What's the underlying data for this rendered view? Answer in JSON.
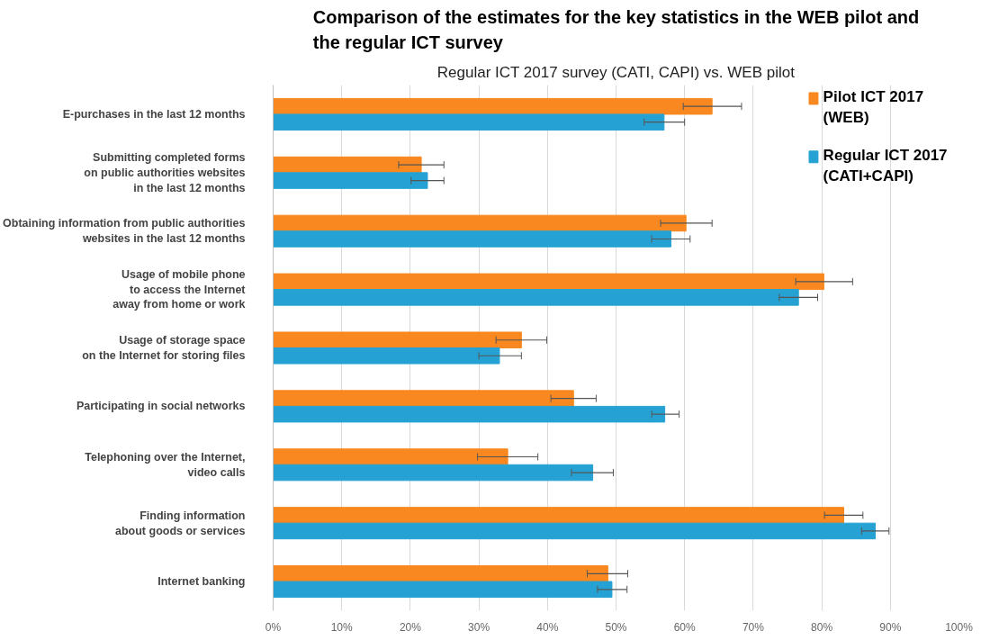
{
  "chart_data": {
    "type": "bar",
    "orientation": "horizontal",
    "title": "Comparison of the estimates for the key statistics in the WEB pilot and the regular ICT survey",
    "subtitle": "Regular ICT 2017 survey (CATI, CAPI) vs. WEB pilot",
    "categories": [
      "E-purchases in the last 12 months",
      "Submitting completed forms\non public authorities websites\nin the last 12 months",
      "Obtaining information from public authorities\nwebsites in the last 12 months",
      "Usage of mobile phone\nto access the Internet\naway from home or work",
      "Usage of storage space\non the Internet for storing files",
      "Participating in social networks",
      "Telephoning over the Internet,\nvideo calls",
      "Finding information\nabout goods or services",
      "Internet banking"
    ],
    "series": [
      {
        "name": "Pilot ICT 2017 (WEB)",
        "color": "#f8881f",
        "values": [
          64.0,
          21.6,
          60.2,
          80.3,
          36.2,
          43.8,
          34.2,
          83.2,
          48.8
        ],
        "errors": [
          [
            59.8,
            68.3
          ],
          [
            18.3,
            24.9
          ],
          [
            56.5,
            64.0
          ],
          [
            76.2,
            84.5
          ],
          [
            32.5,
            39.9
          ],
          [
            40.5,
            47.1
          ],
          [
            29.8,
            38.6
          ],
          [
            80.4,
            86.0
          ],
          [
            45.8,
            51.7
          ]
        ]
      },
      {
        "name": "Regular ICT 2017 (CATI+CAPI)",
        "color": "#25a2d3",
        "values": [
          57.0,
          22.5,
          58.0,
          76.6,
          33.0,
          57.1,
          46.6,
          87.8,
          49.4
        ],
        "errors": [
          [
            54.1,
            60.0
          ],
          [
            20.1,
            24.9
          ],
          [
            55.2,
            60.8
          ],
          [
            73.8,
            79.4
          ],
          [
            30.0,
            36.2
          ],
          [
            55.2,
            59.2
          ],
          [
            43.5,
            49.6
          ],
          [
            85.8,
            89.8
          ],
          [
            47.3,
            51.6
          ]
        ]
      }
    ],
    "xlim": [
      0,
      100
    ],
    "xticks": [
      {
        "value": 0,
        "label": "0%"
      },
      {
        "value": 10,
        "label": "10%"
      },
      {
        "value": 20,
        "label": "20%"
      },
      {
        "value": 30,
        "label": "30%"
      },
      {
        "value": 40,
        "label": "40%"
      },
      {
        "value": 50,
        "label": "50%"
      },
      {
        "value": 60,
        "label": "60%"
      },
      {
        "value": 70,
        "label": "70%"
      },
      {
        "value": 80,
        "label": "80%"
      },
      {
        "value": 90,
        "label": "90%"
      },
      {
        "value": 100,
        "label": "100%"
      }
    ],
    "grid": "x",
    "legend": "top right"
  }
}
